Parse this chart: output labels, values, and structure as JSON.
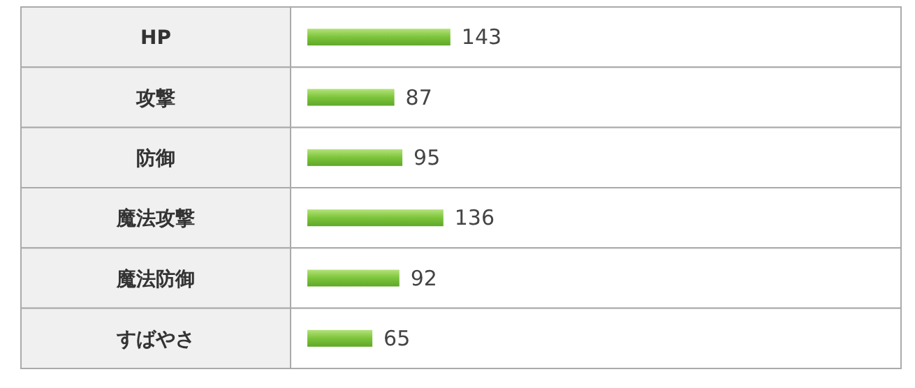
{
  "chart_data": {
    "type": "bar",
    "orientation": "horizontal",
    "categories": [
      "HP",
      "攻撃",
      "防御",
      "魔法攻撃",
      "魔法防御",
      "すばやさ"
    ],
    "values": [
      143,
      87,
      95,
      136,
      92,
      65
    ],
    "color": "#7cc43a",
    "data_labels": true
  }
}
